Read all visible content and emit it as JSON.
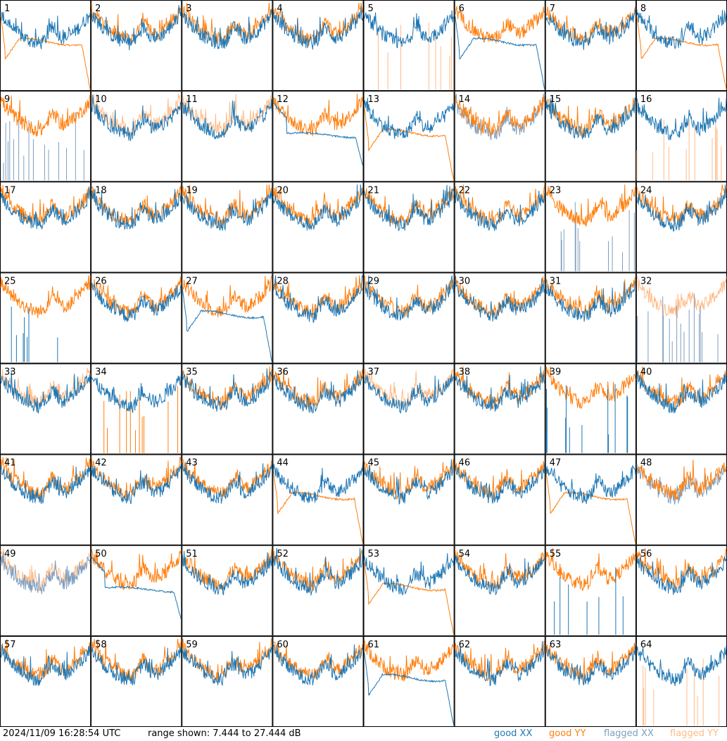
{
  "footer": {
    "timestamp": "2024/11/09 16:28:54 UTC",
    "range_text": "range shown: 7.444 to 27.444 dB",
    "legend": {
      "good_xx": "good XX",
      "good_yy": "good YY",
      "flagged_xx": "flagged XX",
      "flagged_yy": "flagged YY"
    }
  },
  "colors": {
    "good_xx": "#1f77b4",
    "good_yy": "#ff7f0e",
    "flagged_xx": "#7f9fbf",
    "flagged_yy": "#ffbb88",
    "grid": "#000000"
  },
  "chart_data": {
    "type": "line",
    "layout": "8x8 small-multiples grid, one panel per tile",
    "y_range_db": [
      7.444,
      27.444
    ],
    "series_kinds": [
      "good XX",
      "good YY",
      "flagged XX",
      "flagged YY"
    ],
    "tiles": [
      {
        "n": 1,
        "xx": "good",
        "yy": "good",
        "yy_shape": "dip-plateau-drop",
        "xx_shape": "normal"
      },
      {
        "n": 2,
        "xx": "good",
        "yy": "good",
        "xx_shape": "normal",
        "yy_shape": "normal"
      },
      {
        "n": 3,
        "xx": "good",
        "yy": "good",
        "xx_shape": "normal",
        "yy_shape": "normal"
      },
      {
        "n": 4,
        "xx": "good",
        "yy": "good",
        "xx_shape": "normal",
        "yy_shape": "normal"
      },
      {
        "n": 5,
        "xx": "good",
        "yy": "flagged",
        "xx_shape": "normal",
        "yy_shape": "spikes"
      },
      {
        "n": 6,
        "xx": "good",
        "yy": "good",
        "xx_shape": "dip-plateau-drop",
        "yy_shape": "normal"
      },
      {
        "n": 7,
        "xx": "good",
        "yy": "good",
        "xx_shape": "normal",
        "yy_shape": "normal"
      },
      {
        "n": 8,
        "xx": "good",
        "yy": "good",
        "xx_shape": "normal",
        "yy_shape": "dip-plateau-drop"
      },
      {
        "n": 9,
        "xx": "flagged",
        "yy": "good",
        "xx_shape": "spikes",
        "yy_shape": "normal"
      },
      {
        "n": 10,
        "xx": "good",
        "yy": "flagged",
        "xx_shape": "normal",
        "yy_shape": "normal"
      },
      {
        "n": 11,
        "xx": "good",
        "yy": "flagged",
        "xx_shape": "normal",
        "yy_shape": "normal"
      },
      {
        "n": 12,
        "xx": "good",
        "yy": "good",
        "xx_shape": "plateau",
        "yy_shape": "normal"
      },
      {
        "n": 13,
        "xx": "good",
        "yy": "good",
        "xx_shape": "normal",
        "yy_shape": "dip-plateau-drop"
      },
      {
        "n": 14,
        "xx": "flagged",
        "yy": "good",
        "xx_shape": "normal",
        "yy_shape": "normal"
      },
      {
        "n": 15,
        "xx": "good",
        "yy": "good",
        "xx_shape": "normal",
        "yy_shape": "normal"
      },
      {
        "n": 16,
        "xx": "good",
        "yy": "flagged",
        "xx_shape": "normal",
        "yy_shape": "spikes"
      },
      {
        "n": 17,
        "xx": "good",
        "yy": "good",
        "xx_shape": "normal",
        "yy_shape": "normal"
      },
      {
        "n": 18,
        "xx": "good",
        "yy": "good",
        "xx_shape": "normal",
        "yy_shape": "normal"
      },
      {
        "n": 19,
        "xx": "good",
        "yy": "good",
        "xx_shape": "normal",
        "yy_shape": "normal"
      },
      {
        "n": 20,
        "xx": "good",
        "yy": "good",
        "xx_shape": "normal",
        "yy_shape": "normal"
      },
      {
        "n": 21,
        "xx": "good",
        "yy": "good",
        "xx_shape": "normal",
        "yy_shape": "normal"
      },
      {
        "n": 22,
        "xx": "good",
        "yy": "good",
        "xx_shape": "normal",
        "yy_shape": "normal"
      },
      {
        "n": 23,
        "xx": "flagged",
        "yy": "good",
        "xx_shape": "spikes",
        "yy_shape": "normal"
      },
      {
        "n": 24,
        "xx": "good",
        "yy": "good",
        "xx_shape": "normal",
        "yy_shape": "normal"
      },
      {
        "n": 25,
        "xx": "good",
        "yy": "good",
        "xx_shape": "spikes",
        "yy_shape": "normal"
      },
      {
        "n": 26,
        "xx": "good",
        "yy": "good",
        "xx_shape": "normal",
        "yy_shape": "normal"
      },
      {
        "n": 27,
        "xx": "good",
        "yy": "good",
        "xx_shape": "dip-plateau-drop",
        "yy_shape": "normal"
      },
      {
        "n": 28,
        "xx": "good",
        "yy": "good",
        "xx_shape": "normal",
        "yy_shape": "normal"
      },
      {
        "n": 29,
        "xx": "good",
        "yy": "good",
        "xx_shape": "normal",
        "yy_shape": "normal"
      },
      {
        "n": 30,
        "xx": "good",
        "yy": "good",
        "xx_shape": "normal",
        "yy_shape": "normal"
      },
      {
        "n": 31,
        "xx": "good",
        "yy": "good",
        "xx_shape": "normal",
        "yy_shape": "normal"
      },
      {
        "n": 32,
        "xx": "flagged",
        "yy": "flagged",
        "xx_shape": "spikes",
        "yy_shape": "normal"
      },
      {
        "n": 33,
        "xx": "good",
        "yy": "flagged",
        "xx_shape": "normal",
        "yy_shape": "normal"
      },
      {
        "n": 34,
        "xx": "good",
        "yy": "good",
        "xx_shape": "normal",
        "yy_shape": "spikes"
      },
      {
        "n": 35,
        "xx": "good",
        "yy": "good",
        "xx_shape": "normal",
        "yy_shape": "normal"
      },
      {
        "n": 36,
        "xx": "good",
        "yy": "good",
        "xx_shape": "normal",
        "yy_shape": "normal"
      },
      {
        "n": 37,
        "xx": "good",
        "yy": "flagged",
        "xx_shape": "normal",
        "yy_shape": "normal"
      },
      {
        "n": 38,
        "xx": "good",
        "yy": "good",
        "xx_shape": "normal",
        "yy_shape": "normal"
      },
      {
        "n": 39,
        "xx": "good",
        "yy": "good",
        "xx_shape": "spikes",
        "yy_shape": "normal"
      },
      {
        "n": 40,
        "xx": "good",
        "yy": "good",
        "xx_shape": "normal",
        "yy_shape": "normal"
      },
      {
        "n": 41,
        "xx": "good",
        "yy": "good",
        "xx_shape": "normal",
        "yy_shape": "normal"
      },
      {
        "n": 42,
        "xx": "good",
        "yy": "good",
        "xx_shape": "normal",
        "yy_shape": "normal"
      },
      {
        "n": 43,
        "xx": "good",
        "yy": "good",
        "xx_shape": "normal",
        "yy_shape": "normal"
      },
      {
        "n": 44,
        "xx": "good",
        "yy": "good",
        "xx_shape": "normal",
        "yy_shape": "dip-plateau-drop"
      },
      {
        "n": 45,
        "xx": "good",
        "yy": "good",
        "xx_shape": "normal",
        "yy_shape": "normal"
      },
      {
        "n": 46,
        "xx": "good",
        "yy": "good",
        "xx_shape": "normal",
        "yy_shape": "normal"
      },
      {
        "n": 47,
        "xx": "good",
        "yy": "good",
        "xx_shape": "normal",
        "yy_shape": "dip-plateau-drop"
      },
      {
        "n": 48,
        "xx": "flagged",
        "yy": "good",
        "xx_shape": "normal",
        "yy_shape": "normal"
      },
      {
        "n": 49,
        "xx": "flagged",
        "yy": "flagged",
        "xx_shape": "normal",
        "yy_shape": "normal"
      },
      {
        "n": 50,
        "xx": "good",
        "yy": "good",
        "xx_shape": "plateau",
        "yy_shape": "normal"
      },
      {
        "n": 51,
        "xx": "good",
        "yy": "good",
        "xx_shape": "normal",
        "yy_shape": "normal"
      },
      {
        "n": 52,
        "xx": "good",
        "yy": "good",
        "xx_shape": "normal",
        "yy_shape": "normal"
      },
      {
        "n": 53,
        "xx": "good",
        "yy": "good",
        "xx_shape": "normal",
        "yy_shape": "dip-plateau-drop"
      },
      {
        "n": 54,
        "xx": "good",
        "yy": "good",
        "xx_shape": "normal",
        "yy_shape": "normal"
      },
      {
        "n": 55,
        "xx": "good",
        "yy": "good",
        "xx_shape": "spikes",
        "yy_shape": "normal"
      },
      {
        "n": 56,
        "xx": "good",
        "yy": "good",
        "xx_shape": "normal",
        "yy_shape": "normal"
      },
      {
        "n": 57,
        "xx": "good",
        "yy": "good",
        "xx_shape": "normal",
        "yy_shape": "normal"
      },
      {
        "n": 58,
        "xx": "good",
        "yy": "good",
        "xx_shape": "normal",
        "yy_shape": "normal"
      },
      {
        "n": 59,
        "xx": "good",
        "yy": "good",
        "xx_shape": "normal",
        "yy_shape": "normal"
      },
      {
        "n": 60,
        "xx": "good",
        "yy": "good",
        "xx_shape": "normal",
        "yy_shape": "normal"
      },
      {
        "n": 61,
        "xx": "good",
        "yy": "good",
        "xx_shape": "dip-plateau-drop",
        "yy_shape": "normal"
      },
      {
        "n": 62,
        "xx": "good",
        "yy": "good",
        "xx_shape": "normal",
        "yy_shape": "normal"
      },
      {
        "n": 63,
        "xx": "good",
        "yy": "good",
        "xx_shape": "normal",
        "yy_shape": "normal"
      },
      {
        "n": 64,
        "xx": "good",
        "yy": "flagged",
        "xx_shape": "normal",
        "yy_shape": "spikes"
      }
    ]
  }
}
